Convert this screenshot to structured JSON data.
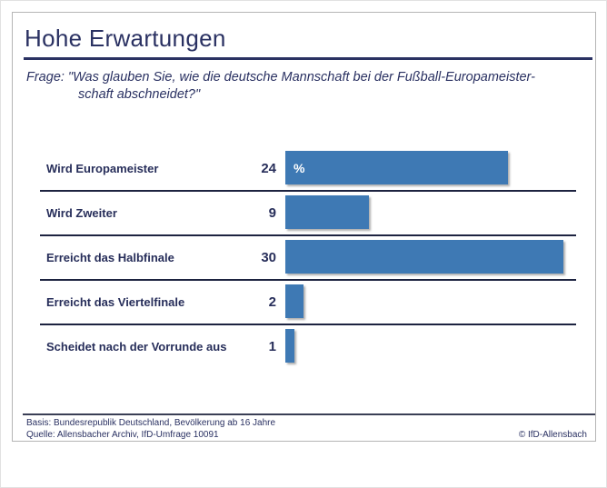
{
  "title": "Hohe Erwartungen",
  "question": {
    "line1": "Frage: \"Was glauben Sie, wie die deutsche Mannschaft bei der Fußball-Europameister-",
    "line2": "schaft abschneidet?\""
  },
  "chart_data": {
    "type": "bar",
    "orientation": "horizontal",
    "title": "Hohe Erwartungen",
    "categories": [
      "Wird Europameister",
      "Wird Zweiter",
      "Erreicht das Halbfinale",
      "Erreicht das Viertelfinale",
      "Scheidet nach der Vorrunde aus"
    ],
    "values": [
      24,
      9,
      30,
      2,
      1
    ],
    "unit": "%",
    "unit_position": "inside-first-bar",
    "xlim": [
      0,
      30
    ],
    "grid": false,
    "legend": false,
    "bar_color": "#3e79b4",
    "row_separators": true
  },
  "footer": {
    "basis": "Basis: Bundesrepublik Deutschland, Bevölkerung ab 16 Jahre",
    "quelle": "Quelle: Allensbacher Archiv, IfD-Umfrage 10091",
    "copyright": "© IfD-Allensbach"
  },
  "colors": {
    "accent_navy": "#2a3162",
    "bar_blue": "#3e79b4",
    "frame_gray": "#b5b5b5"
  }
}
